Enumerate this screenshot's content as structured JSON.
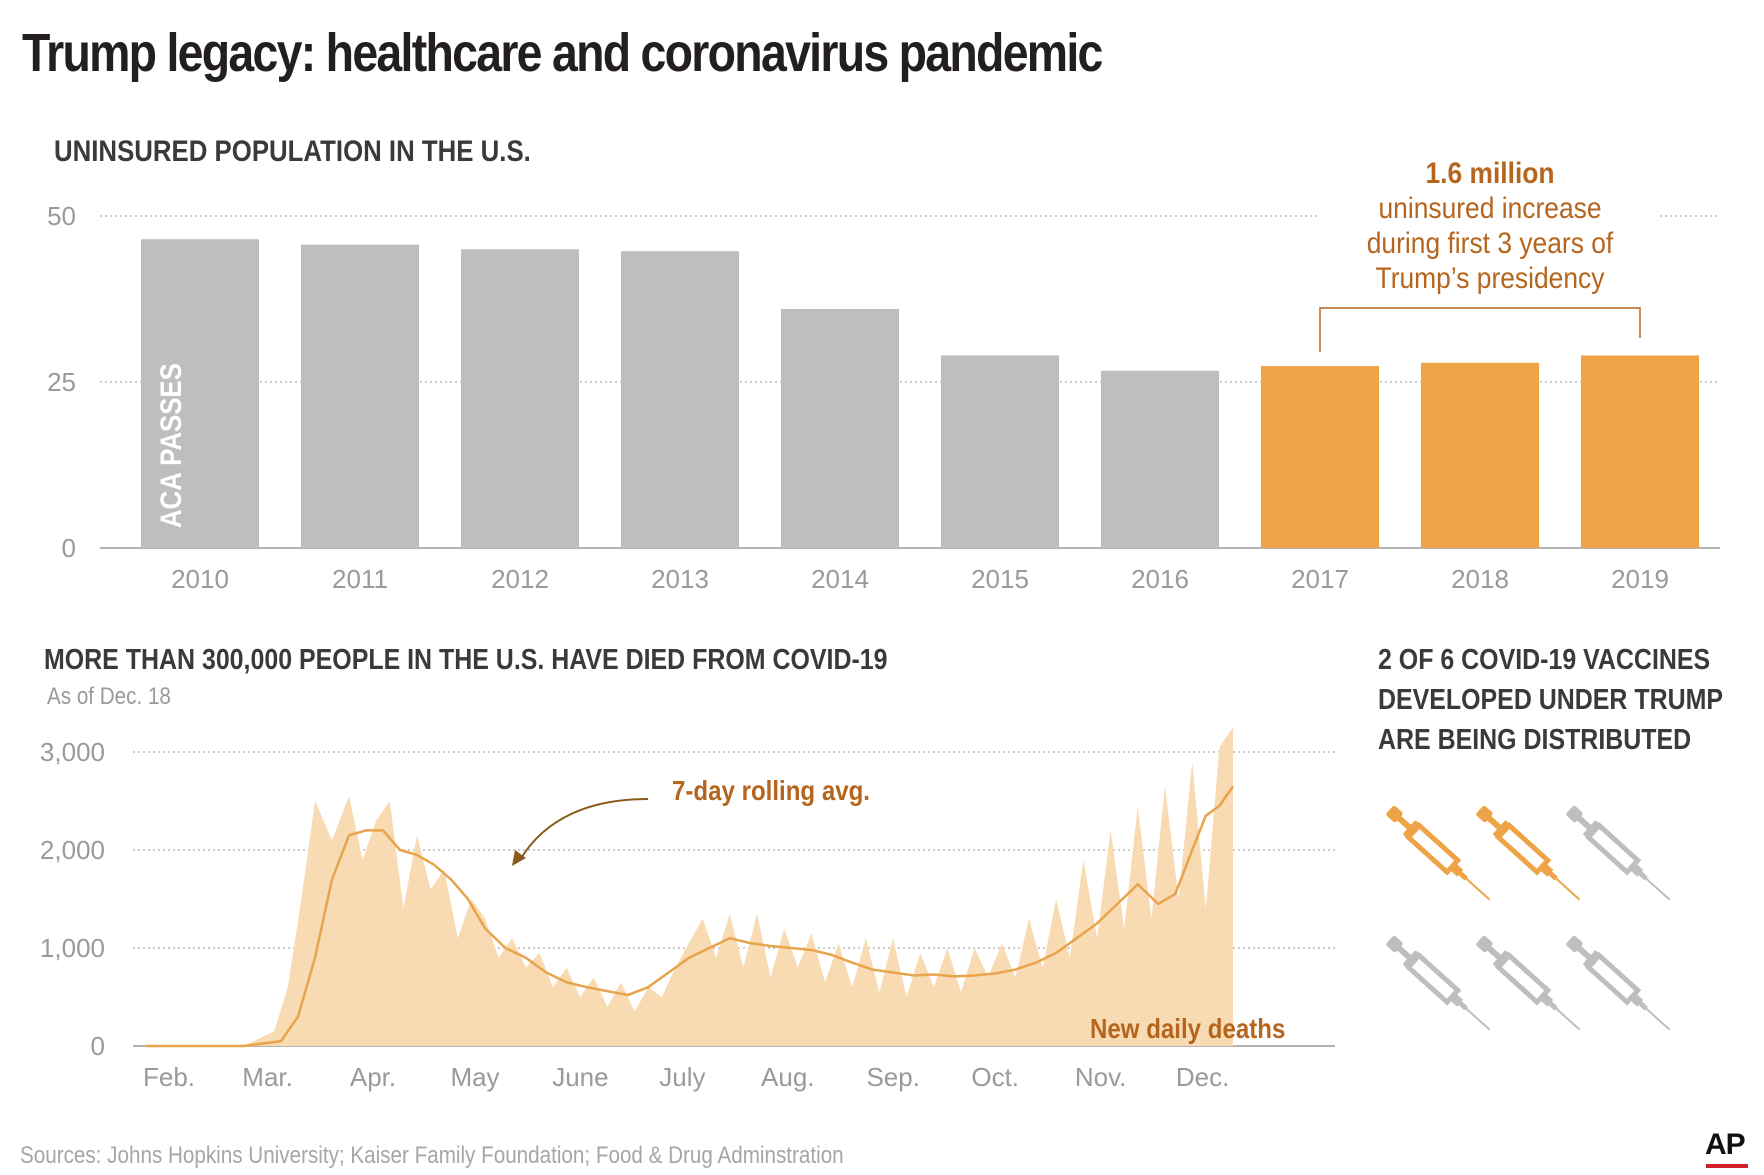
{
  "title": "Trump legacy: healthcare and coronavirus pandemic",
  "colors": {
    "gray_bar": "#bcbec0",
    "orange": "#eda346",
    "orange_text": "#b5651d",
    "area": "#f8dbb3",
    "line": "#e8a44c"
  },
  "insured": {
    "heading": "UNINSURED POPULATION IN THE U.S.",
    "aca_label": "ACA PASSES",
    "note": {
      "strong": "1.6 million",
      "line1": "uninsured increase",
      "line2": "during first 3 years of",
      "line3": "Trump’s presidency"
    }
  },
  "covid": {
    "heading": "MORE THAN 300,000 PEOPLE IN THE U.S. HAVE DIED FROM COVID-19",
    "subtitle": "As of Dec. 18",
    "avg_label": "7-day rolling avg.",
    "daily_label": "New daily deaths"
  },
  "vaccines": {
    "line1": "2 OF 6 COVID-19 VACCINES",
    "line2": "DEVELOPED UNDER TRUMP",
    "line3": "ARE BEING DISTRIBUTED",
    "icons": [
      "syringe-orange",
      "syringe-orange",
      "syringe-gray",
      "syringe-gray",
      "syringe-gray",
      "syringe-gray"
    ]
  },
  "source": "Sources: Johns Hopkins University; Kaiser Family Foundation; Food & Drug Adminstration",
  "logo": "AP",
  "chart_data": [
    {
      "type": "bar",
      "title": "UNINSURED POPULATION IN THE U.S.",
      "categories": [
        "2010",
        "2011",
        "2012",
        "2013",
        "2014",
        "2015",
        "2016",
        "2017",
        "2018",
        "2019"
      ],
      "values": [
        46.5,
        45.7,
        45.0,
        44.7,
        36.0,
        29.0,
        26.7,
        27.4,
        27.9,
        29.0
      ],
      "highlight": [
        false,
        false,
        false,
        false,
        false,
        false,
        false,
        true,
        true,
        true
      ],
      "ylim": [
        0,
        50
      ],
      "yticks": [
        0,
        25,
        50
      ],
      "ytick_labels": [
        "0",
        "25",
        "50"
      ],
      "units": "millions"
    },
    {
      "type": "area",
      "title": "MORE THAN 300,000 PEOPLE IN THE U.S. HAVE DIED FROM COVID-19",
      "x_months": [
        "Feb.",
        "Mar.",
        "Apr.",
        "May",
        "June",
        "July",
        "Aug.",
        "Sep.",
        "Oct.",
        "Nov.",
        "Dec."
      ],
      "ylim": [
        0,
        3000
      ],
      "yticks": [
        0,
        1000,
        2000,
        3000
      ],
      "ytick_labels": [
        "0",
        "1,000",
        "2,000",
        "3,000"
      ],
      "series": [
        {
          "name": "7-day rolling avg.",
          "x_day": [
            0,
            29,
            40,
            45,
            50,
            55,
            60,
            65,
            70,
            75,
            80,
            85,
            90,
            95,
            100,
            106,
            112,
            118,
            124,
            130,
            136,
            142,
            148,
            154,
            160,
            166,
            172,
            178,
            184,
            190,
            196,
            202,
            208,
            214,
            220,
            226,
            232,
            238,
            244,
            250,
            256,
            262,
            268,
            274,
            280,
            286,
            292,
            298,
            303,
            308,
            312,
            316,
            320
          ],
          "values": [
            0,
            0,
            50,
            300,
            900,
            1700,
            2150,
            2200,
            2200,
            2000,
            1950,
            1850,
            1700,
            1500,
            1200,
            1000,
            900,
            750,
            650,
            600,
            560,
            520,
            600,
            750,
            900,
            1000,
            1100,
            1050,
            1020,
            1000,
            980,
            930,
            850,
            780,
            750,
            720,
            730,
            710,
            720,
            740,
            780,
            850,
            950,
            1100,
            1250,
            1450,
            1650,
            1450,
            1550,
            2000,
            2350,
            2450,
            2650
          ]
        },
        {
          "name": "New daily deaths",
          "x_day": [
            0,
            29,
            38,
            42,
            46,
            50,
            55,
            60,
            64,
            68,
            72,
            76,
            80,
            84,
            88,
            92,
            96,
            100,
            104,
            108,
            112,
            116,
            120,
            124,
            128,
            132,
            136,
            140,
            144,
            148,
            152,
            156,
            160,
            164,
            168,
            172,
            176,
            180,
            184,
            188,
            192,
            196,
            200,
            204,
            208,
            212,
            216,
            220,
            224,
            228,
            232,
            236,
            240,
            244,
            248,
            252,
            256,
            260,
            264,
            268,
            272,
            276,
            280,
            284,
            288,
            292,
            296,
            300,
            304,
            308,
            312,
            316,
            320
          ],
          "values": [
            0,
            0,
            150,
            600,
            1500,
            2500,
            2100,
            2550,
            1900,
            2300,
            2500,
            1400,
            2150,
            1600,
            1800,
            1100,
            1500,
            1300,
            900,
            1100,
            800,
            950,
            600,
            800,
            500,
            700,
            400,
            650,
            350,
            600,
            500,
            800,
            1050,
            1300,
            900,
            1350,
            800,
            1350,
            700,
            1200,
            800,
            1150,
            650,
            1050,
            600,
            1100,
            550,
            1100,
            500,
            950,
            600,
            1000,
            550,
            1000,
            700,
            1050,
            700,
            1300,
            800,
            1500,
            900,
            1900,
            1100,
            2200,
            1200,
            2450,
            1300,
            2650,
            1500,
            2900,
            1400,
            3050,
            3250
          ]
        }
      ]
    }
  ]
}
